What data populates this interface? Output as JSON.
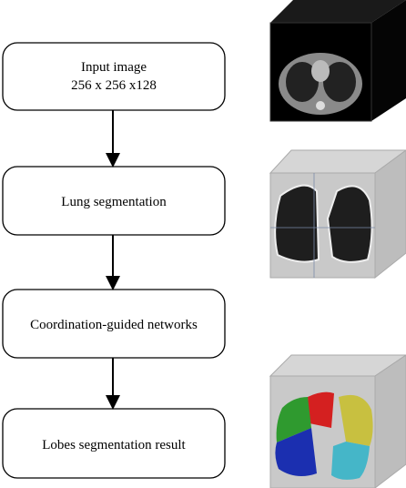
{
  "nodes": [
    {
      "label": "Input image",
      "sublabel": "256 x 256 x128"
    },
    {
      "label": "Lung segmentation"
    },
    {
      "label": "Coordination-guided networks"
    },
    {
      "label": "Lobes segmentation result"
    }
  ]
}
